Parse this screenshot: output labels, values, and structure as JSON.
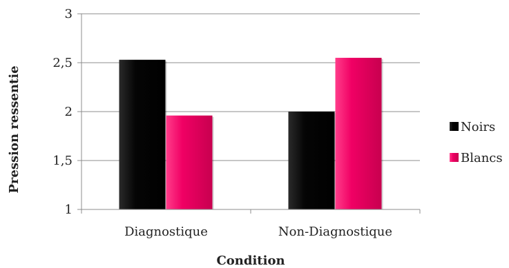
{
  "chart_data": {
    "type": "bar",
    "title": "",
    "xlabel": "Condition",
    "ylabel": "Pression ressentie",
    "categories": [
      "Diagnostique",
      "Non-Diagnostique"
    ],
    "series": [
      {
        "name": "Noirs",
        "values": [
          2.53,
          2.0
        ],
        "color": "#000000"
      },
      {
        "name": "Blancs",
        "values": [
          1.96,
          2.55
        ],
        "color": "#e8005e"
      }
    ],
    "ylim": [
      1,
      3
    ],
    "yticks": [
      "1",
      "1,5",
      "2",
      "2,5",
      "3"
    ],
    "grid": true,
    "legend_position": "right"
  }
}
